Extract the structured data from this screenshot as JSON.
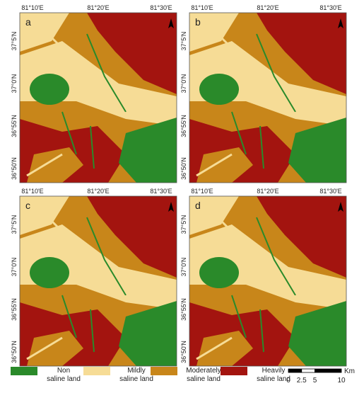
{
  "panels": [
    {
      "label": "a"
    },
    {
      "label": "b"
    },
    {
      "label": "c"
    },
    {
      "label": "d"
    }
  ],
  "lon_labels": [
    "81°10'E",
    "81°20'E",
    "81°30'E"
  ],
  "lat_labels": [
    "37°5'N",
    "37°0'N",
    "36°55'N",
    "36°50'N"
  ],
  "legend": [
    {
      "lines": [
        "Non",
        "saline land"
      ],
      "color": "#2a8a2a"
    },
    {
      "lines": [
        "Mildly",
        "saline land"
      ],
      "color": "#f6dc96"
    },
    {
      "lines": [
        "Moderately",
        "saline land"
      ],
      "color": "#c8861a"
    },
    {
      "lines": [
        "Heavily",
        "saline land"
      ],
      "color": "#a3140f"
    }
  ],
  "scale_bar": {
    "ticks": [
      0,
      2.5,
      5,
      10
    ],
    "unit": "Km"
  }
}
